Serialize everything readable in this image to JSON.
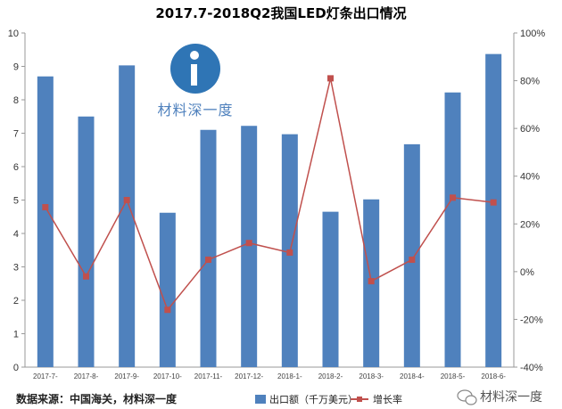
{
  "chart_data": {
    "type": "bar",
    "title": "2017.7-2018Q2我国LED灯条出口情况",
    "categories": [
      "2017-7-",
      "2017-8-",
      "2017-9-",
      "2017-10-",
      "2017-11-",
      "2017-12-",
      "2018-1-",
      "2018-2-",
      "2018-3-",
      "2018-4-",
      "2018-5-",
      "2018-6-"
    ],
    "series": [
      {
        "name": "出口额（千万美元）",
        "type": "bar",
        "axis": "left",
        "color": "#4f81bd",
        "values": [
          8.7,
          7.5,
          9.03,
          4.62,
          7.1,
          7.22,
          6.97,
          4.65,
          5.02,
          6.67,
          8.22,
          9.37
        ]
      },
      {
        "name": "增长率",
        "type": "line",
        "axis": "right",
        "color": "#c0504d",
        "values": [
          27,
          -2,
          30,
          -16,
          5,
          12,
          8,
          81,
          -4,
          5,
          31,
          29
        ]
      }
    ],
    "y_left": {
      "min": 0,
      "max": 10,
      "step": 1,
      "ticks": [
        "0",
        "1",
        "2",
        "3",
        "4",
        "5",
        "6",
        "7",
        "8",
        "9",
        "10"
      ]
    },
    "y_right": {
      "min": -40,
      "max": 100,
      "step": 20,
      "ticks": [
        "-40%",
        "-20%",
        "0%",
        "20%",
        "40%",
        "60%",
        "80%",
        "100%"
      ]
    },
    "grid": false,
    "legend_position": "bottom"
  },
  "source_note": "数据来源：中国海关，材料深一度",
  "watermark": {
    "logo_letter": "i",
    "text": "材料深一度"
  },
  "footer_brand": "材料深一度"
}
